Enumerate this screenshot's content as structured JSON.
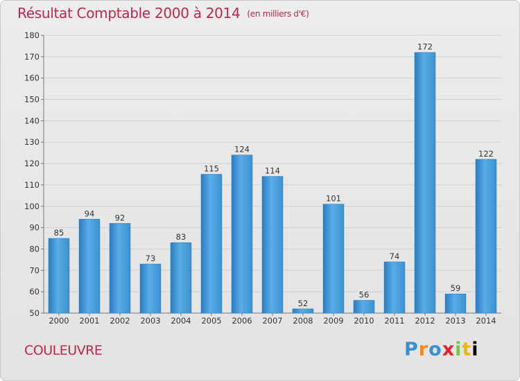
{
  "header": {
    "title": "Résultat Comptable 2000 à 2014",
    "subtitle": "(en milliers d'€)"
  },
  "footer": {
    "place": "COULEUVRE",
    "logo": [
      "P",
      "r",
      "o",
      "x",
      "i",
      "t",
      "i"
    ]
  },
  "colors": {
    "bar": "#3f95d9",
    "bar_light": "#5aaee6",
    "bar_dark": "#2a7cc0",
    "title": "#c0264a",
    "grid": "#d0d0d0"
  },
  "chart_data": {
    "type": "bar",
    "categories": [
      "2000",
      "2001",
      "2002",
      "2003",
      "2004",
      "2005",
      "2006",
      "2007",
      "2008",
      "2009",
      "2010",
      "2011",
      "2012",
      "2013",
      "2014"
    ],
    "values": [
      85,
      94,
      92,
      73,
      83,
      115,
      124,
      114,
      52,
      101,
      56,
      74,
      172,
      59,
      122
    ],
    "ylim": [
      50,
      180
    ],
    "yticks": [
      50,
      60,
      70,
      80,
      90,
      100,
      110,
      120,
      130,
      140,
      150,
      160,
      170,
      180
    ],
    "grid": true,
    "title": "Résultat Comptable 2000 à 2014",
    "subtitle": "(en milliers d'€)"
  }
}
